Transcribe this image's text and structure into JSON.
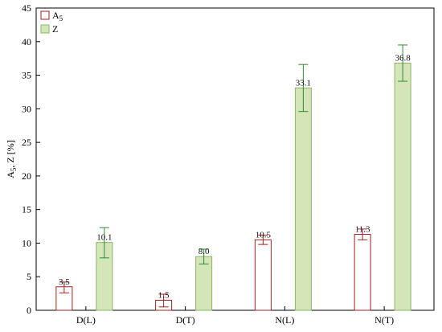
{
  "chart_data": {
    "type": "bar",
    "title": "",
    "xlabel": "",
    "ylabel": "A5, Z [%]",
    "ylabel_main": "A",
    "ylabel_sub": "5",
    "ylabel_rest": ", Z [%]",
    "ylim": [
      0,
      45
    ],
    "yticks": [
      0,
      5,
      10,
      15,
      20,
      25,
      30,
      35,
      40,
      45
    ],
    "grid": false,
    "legend_position": "top-left",
    "categories": [
      "D(L)",
      "D(T)",
      "N(L)",
      "N(T)"
    ],
    "series": [
      {
        "name": "A5",
        "name_main": "A",
        "name_sub": "5",
        "values": [
          3.5,
          1.5,
          10.5,
          11.3
        ],
        "labels": [
          "3.5",
          "1.5",
          "10.5",
          "11.3"
        ],
        "error_low": [
          2.6,
          0.5,
          9.8,
          10.5
        ],
        "error_high": [
          4.2,
          2.4,
          11.2,
          12.1
        ],
        "fill": "#ffffff",
        "stroke": "#a02020",
        "error_color": "#a02020"
      },
      {
        "name": "Z",
        "name_main": "Z",
        "name_sub": "",
        "values": [
          10.1,
          8.0,
          33.1,
          36.8
        ],
        "labels": [
          "10.1",
          "8.0",
          "33.1",
          "36.8"
        ],
        "error_low": [
          7.8,
          6.9,
          29.6,
          34.1
        ],
        "error_high": [
          12.3,
          9.1,
          36.6,
          39.5
        ],
        "fill": "#d4e6b8",
        "stroke": "#8ab56a",
        "error_color": "#2e8b2e"
      }
    ]
  }
}
